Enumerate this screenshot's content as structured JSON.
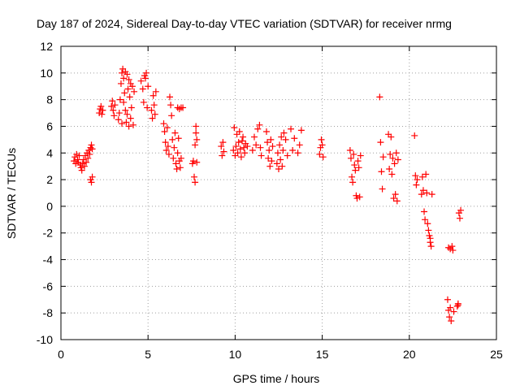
{
  "chart_data": {
    "type": "scatter",
    "title": "Day 187 of 2024, Sidereal Day-to-day VTEC variation (SDTVAR) for receiver nrmg",
    "xlabel": "GPS time / hours",
    "ylabel": "SDTVAR / TECUs",
    "xlim": [
      0,
      25
    ],
    "ylim": [
      -10,
      12
    ],
    "xticks": [
      0,
      5,
      10,
      15,
      20,
      25
    ],
    "yticks": [
      -10,
      -8,
      -6,
      -4,
      -2,
      0,
      2,
      4,
      6,
      8,
      10,
      12
    ],
    "grid": true,
    "marker": "+",
    "series": [
      {
        "name": "SDTVAR",
        "color": "#ff0000",
        "points": [
          [
            0.75,
            3.4
          ],
          [
            0.8,
            3.7
          ],
          [
            0.85,
            3.2
          ],
          [
            0.9,
            3.9
          ],
          [
            0.95,
            3.5
          ],
          [
            1.0,
            3.3
          ],
          [
            1.05,
            3.8
          ],
          [
            1.1,
            3.1
          ],
          [
            1.15,
            2.9
          ],
          [
            1.2,
            2.7
          ],
          [
            1.25,
            3.2
          ],
          [
            1.3,
            3.5
          ],
          [
            1.35,
            3.0
          ],
          [
            1.4,
            3.8
          ],
          [
            1.45,
            3.3
          ],
          [
            1.5,
            4.0
          ],
          [
            1.55,
            3.6
          ],
          [
            1.6,
            4.2
          ],
          [
            1.65,
            3.9
          ],
          [
            1.7,
            4.4
          ],
          [
            1.75,
            4.6
          ],
          [
            1.8,
            4.3
          ],
          [
            1.7,
            2.0
          ],
          [
            1.75,
            1.8
          ],
          [
            1.8,
            2.2
          ],
          [
            2.2,
            7.0
          ],
          [
            2.25,
            7.3
          ],
          [
            2.3,
            7.5
          ],
          [
            2.35,
            6.9
          ],
          [
            2.4,
            7.2
          ],
          [
            2.9,
            7.5
          ],
          [
            2.95,
            7.9
          ],
          [
            3.0,
            7.2
          ],
          [
            3.05,
            6.8
          ],
          [
            3.1,
            7.6
          ],
          [
            3.3,
            6.5
          ],
          [
            3.35,
            7.0
          ],
          [
            3.4,
            8.0
          ],
          [
            3.45,
            9.2
          ],
          [
            3.5,
            10.0
          ],
          [
            3.55,
            10.3
          ],
          [
            3.6,
            9.6
          ],
          [
            3.65,
            8.5
          ],
          [
            3.7,
            7.2
          ],
          [
            3.75,
            6.3
          ],
          [
            3.8,
            6.9
          ],
          [
            3.85,
            8.8
          ],
          [
            3.9,
            9.5
          ],
          [
            3.95,
            8.2
          ],
          [
            4.0,
            6.6
          ],
          [
            4.05,
            7.4
          ],
          [
            4.1,
            9.0
          ],
          [
            4.15,
            6.1
          ],
          [
            4.2,
            8.6
          ],
          [
            3.5,
            6.2
          ],
          [
            3.6,
            7.8
          ],
          [
            3.7,
            10.1
          ],
          [
            3.8,
            9.9
          ],
          [
            3.9,
            6.0
          ],
          [
            4.0,
            9.2
          ],
          [
            4.6,
            9.4
          ],
          [
            4.7,
            8.8
          ],
          [
            4.75,
            7.8
          ],
          [
            4.8,
            9.8
          ],
          [
            4.85,
            9.6
          ],
          [
            4.9,
            10.0
          ],
          [
            4.95,
            7.4
          ],
          [
            5.0,
            9.0
          ],
          [
            5.2,
            7.2
          ],
          [
            5.25,
            6.6
          ],
          [
            5.3,
            8.3
          ],
          [
            5.35,
            7.6
          ],
          [
            5.4,
            6.9
          ],
          [
            5.45,
            8.6
          ],
          [
            5.9,
            6.2
          ],
          [
            5.95,
            5.6
          ],
          [
            6.0,
            4.8
          ],
          [
            6.05,
            4.2
          ],
          [
            6.1,
            5.9
          ],
          [
            6.15,
            4.5
          ],
          [
            6.2,
            3.9
          ],
          [
            6.25,
            8.2
          ],
          [
            6.3,
            7.6
          ],
          [
            6.35,
            6.8
          ],
          [
            6.4,
            5.0
          ],
          [
            6.45,
            3.6
          ],
          [
            6.5,
            4.4
          ],
          [
            6.55,
            5.5
          ],
          [
            6.6,
            3.2
          ],
          [
            6.65,
            2.8
          ],
          [
            6.7,
            4.0
          ],
          [
            6.75,
            5.1
          ],
          [
            6.8,
            3.4
          ],
          [
            6.85,
            2.9
          ],
          [
            6.9,
            3.6
          ],
          [
            6.7,
            7.4
          ],
          [
            6.8,
            7.3
          ],
          [
            6.9,
            7.4
          ],
          [
            7.0,
            7.4
          ],
          [
            7.55,
            3.2
          ],
          [
            7.6,
            3.4
          ],
          [
            7.65,
            2.2
          ],
          [
            7.7,
            1.8
          ],
          [
            7.75,
            5.5
          ],
          [
            7.8,
            5.0
          ],
          [
            7.7,
            4.6
          ],
          [
            7.8,
            3.3
          ],
          [
            7.75,
            6.0
          ],
          [
            9.2,
            4.5
          ],
          [
            9.25,
            3.8
          ],
          [
            9.3,
            4.8
          ],
          [
            9.35,
            4.1
          ],
          [
            9.9,
            4.2
          ],
          [
            9.95,
            5.9
          ],
          [
            10.0,
            3.8
          ],
          [
            10.05,
            4.5
          ],
          [
            10.1,
            5.4
          ],
          [
            10.15,
            4.0
          ],
          [
            10.2,
            4.8
          ],
          [
            10.25,
            5.6
          ],
          [
            10.3,
            4.3
          ],
          [
            10.35,
            3.7
          ],
          [
            10.4,
            4.9
          ],
          [
            10.45,
            5.2
          ],
          [
            10.5,
            4.4
          ],
          [
            10.55,
            4.0
          ],
          [
            10.6,
            4.7
          ],
          [
            10.7,
            4.5
          ],
          [
            11.0,
            4.2
          ],
          [
            11.1,
            5.2
          ],
          [
            11.2,
            4.6
          ],
          [
            11.3,
            5.8
          ],
          [
            11.4,
            6.1
          ],
          [
            11.45,
            4.4
          ],
          [
            11.5,
            3.8
          ],
          [
            11.8,
            5.6
          ],
          [
            11.85,
            4.8
          ],
          [
            11.9,
            3.6
          ],
          [
            11.95,
            4.2
          ],
          [
            12.0,
            3.0
          ],
          [
            12.05,
            5.0
          ],
          [
            12.1,
            3.4
          ],
          [
            12.15,
            4.5
          ],
          [
            12.4,
            3.2
          ],
          [
            12.45,
            4.0
          ],
          [
            12.5,
            2.8
          ],
          [
            12.55,
            4.6
          ],
          [
            12.6,
            3.5
          ],
          [
            12.65,
            5.2
          ],
          [
            12.7,
            3.0
          ],
          [
            12.75,
            4.2
          ],
          [
            12.8,
            5.5
          ],
          [
            12.9,
            5.0
          ],
          [
            13.0,
            3.8
          ],
          [
            13.2,
            5.8
          ],
          [
            13.3,
            4.2
          ],
          [
            13.4,
            5.1
          ],
          [
            13.6,
            4.0
          ],
          [
            13.7,
            4.6
          ],
          [
            13.8,
            5.7
          ],
          [
            14.85,
            3.9
          ],
          [
            14.9,
            4.4
          ],
          [
            14.95,
            5.0
          ],
          [
            15.0,
            4.6
          ],
          [
            15.05,
            3.7
          ],
          [
            16.6,
            4.2
          ],
          [
            16.65,
            3.6
          ],
          [
            16.7,
            2.2
          ],
          [
            16.75,
            1.8
          ],
          [
            16.8,
            3.9
          ],
          [
            16.85,
            3.1
          ],
          [
            16.9,
            2.7
          ],
          [
            16.95,
            0.8
          ],
          [
            17.0,
            0.6
          ],
          [
            17.05,
            3.4
          ],
          [
            17.1,
            2.9
          ],
          [
            17.15,
            0.7
          ],
          [
            17.2,
            3.8
          ],
          [
            18.3,
            8.2
          ],
          [
            18.35,
            4.8
          ],
          [
            18.4,
            2.6
          ],
          [
            18.45,
            1.3
          ],
          [
            18.5,
            3.7
          ],
          [
            18.8,
            5.4
          ],
          [
            18.85,
            2.8
          ],
          [
            18.9,
            3.9
          ],
          [
            18.95,
            5.2
          ],
          [
            19.0,
            2.4
          ],
          [
            19.05,
            3.6
          ],
          [
            19.1,
            0.6
          ],
          [
            19.15,
            3.2
          ],
          [
            19.2,
            0.9
          ],
          [
            19.25,
            4.0
          ],
          [
            19.3,
            0.4
          ],
          [
            19.35,
            3.5
          ],
          [
            20.3,
            5.3
          ],
          [
            20.35,
            2.3
          ],
          [
            20.4,
            1.6
          ],
          [
            20.45,
            2.0
          ],
          [
            20.7,
            0.9
          ],
          [
            20.75,
            2.2
          ],
          [
            20.8,
            1.2
          ],
          [
            20.85,
            -0.4
          ],
          [
            20.9,
            -1.0
          ],
          [
            20.95,
            2.4
          ],
          [
            21.0,
            1.0
          ],
          [
            21.05,
            -1.3
          ],
          [
            21.1,
            -1.8
          ],
          [
            21.15,
            -2.2
          ],
          [
            21.2,
            -2.7
          ],
          [
            21.25,
            -3.0
          ],
          [
            21.3,
            0.9
          ],
          [
            21.2,
            -2.4
          ],
          [
            22.2,
            -7.0
          ],
          [
            22.25,
            -7.8
          ],
          [
            22.3,
            -8.3
          ],
          [
            22.35,
            -7.6
          ],
          [
            22.4,
            -8.6
          ],
          [
            22.45,
            -3.0
          ],
          [
            22.5,
            -3.3
          ],
          [
            22.55,
            -7.9
          ],
          [
            22.35,
            -3.2
          ],
          [
            22.25,
            -3.1
          ],
          [
            22.75,
            -7.5
          ],
          [
            22.8,
            -7.3
          ],
          [
            22.85,
            -0.5
          ],
          [
            22.9,
            -0.9
          ],
          [
            22.95,
            -0.3
          ],
          [
            22.8,
            -7.4
          ]
        ]
      }
    ]
  }
}
